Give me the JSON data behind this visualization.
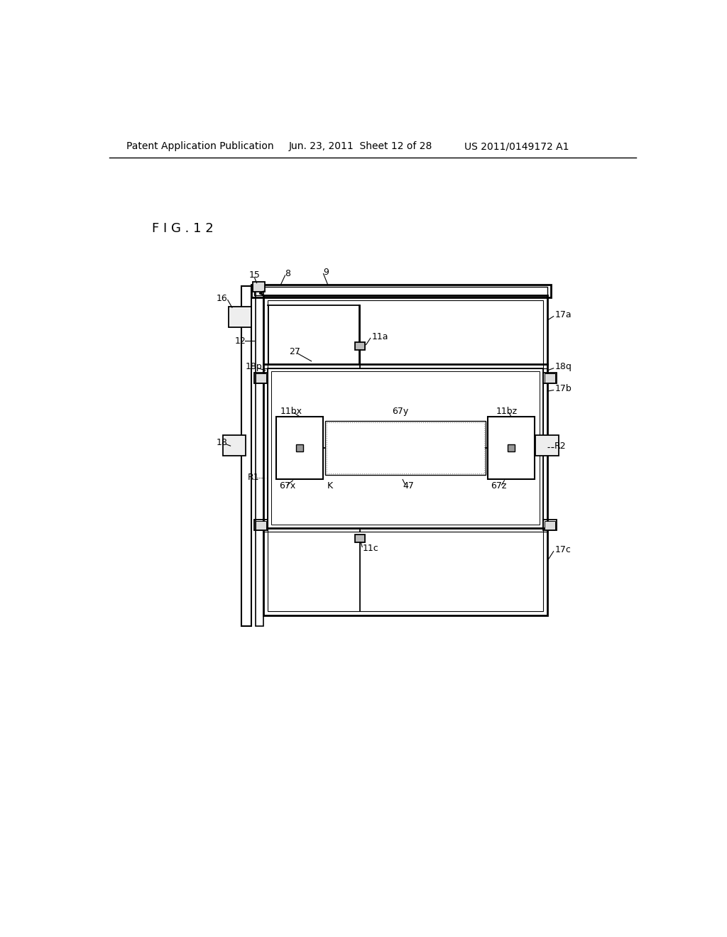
{
  "bg_color": "#ffffff",
  "header_left": "Patent Application Publication",
  "header_mid": "Jun. 23, 2011  Sheet 12 of 28",
  "header_right": "US 2011/0149172 A1",
  "fig_label": "F I G . 1 2",
  "lc": "#000000",
  "gray1": "#999999",
  "gray2": "#bbbbbb",
  "gray3": "#dddddd",
  "gray_light": "#eeeeee"
}
